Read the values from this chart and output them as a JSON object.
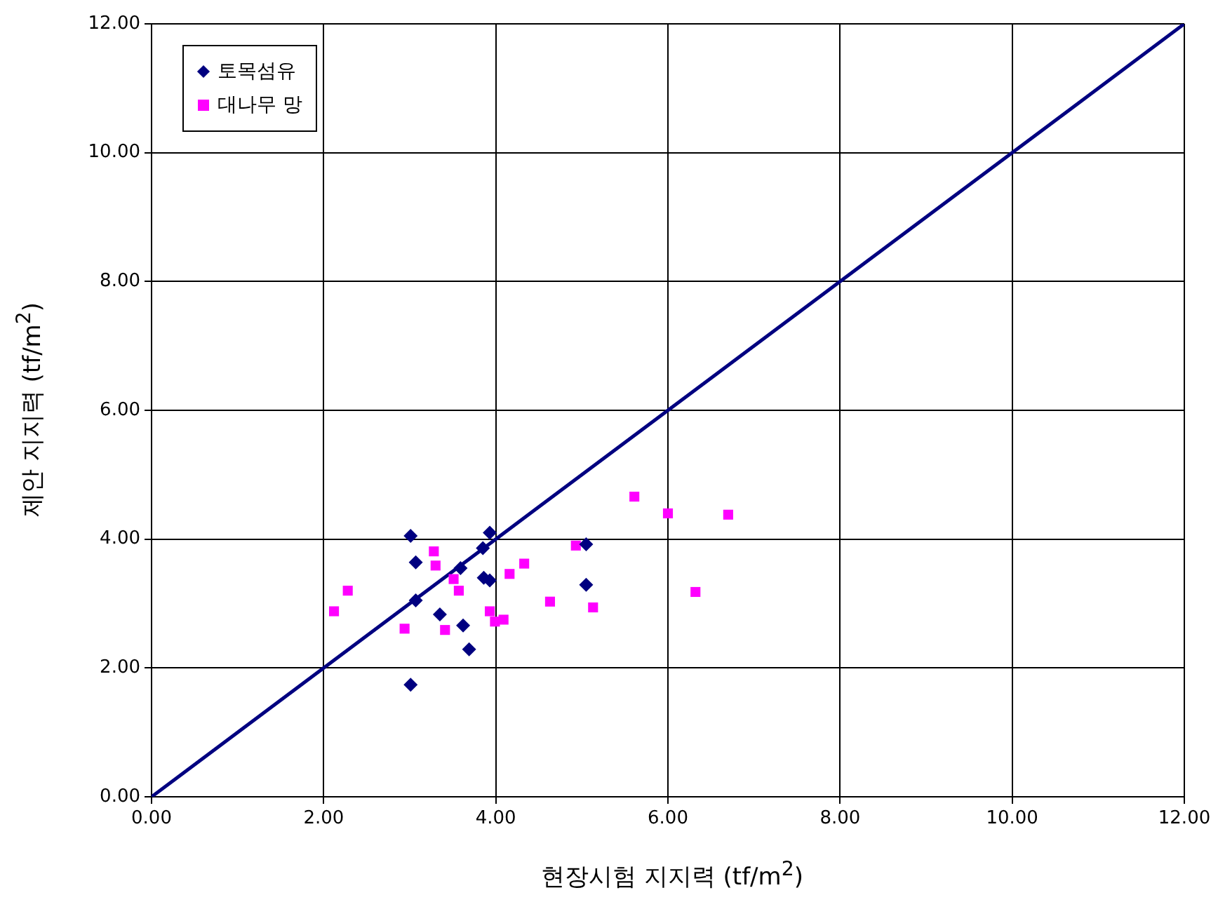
{
  "chart_data": {
    "type": "scatter",
    "xlabel": "현장시험 지지력 (tf/m$^{2}$)",
    "ylabel": "제안 지지력 (tf/m$^{2}$)",
    "xlim": [
      0,
      12
    ],
    "ylim": [
      0,
      12
    ],
    "xticks": [
      {
        "value": 0,
        "label": "0.00"
      },
      {
        "value": 2,
        "label": "2.00"
      },
      {
        "value": 4,
        "label": "4.00"
      },
      {
        "value": 6,
        "label": "6.00"
      },
      {
        "value": 8,
        "label": "8.00"
      },
      {
        "value": 10,
        "label": "10.00"
      },
      {
        "value": 12,
        "label": "12.00"
      }
    ],
    "yticks": [
      {
        "value": 0,
        "label": "0.00"
      },
      {
        "value": 2,
        "label": "2.00"
      },
      {
        "value": 4,
        "label": "4.00"
      },
      {
        "value": 6,
        "label": "6.00"
      },
      {
        "value": 8,
        "label": "8.00"
      },
      {
        "value": 10,
        "label": "10.00"
      },
      {
        "value": 12,
        "label": "12.00"
      }
    ],
    "grid": true,
    "legend": "top left",
    "series": [
      {
        "name": "토목섬유",
        "type": "scatter",
        "marker": "diamond",
        "color": "#000080",
        "x": [
          3.01,
          3.07,
          3.07,
          3.35,
          3.59,
          3.62,
          3.69,
          3.01,
          3.85,
          3.93,
          3.86,
          3.93,
          5.05,
          5.05
        ],
        "values": [
          4.05,
          3.64,
          3.05,
          2.83,
          3.55,
          2.66,
          2.29,
          1.74,
          3.86,
          4.1,
          3.4,
          3.36,
          3.92,
          3.29
        ]
      },
      {
        "name": "대나무 망",
        "type": "scatter",
        "marker": "square",
        "color": "#ff00ff",
        "x": [
          2.28,
          2.12,
          2.94,
          3.28,
          3.3,
          3.51,
          3.57,
          3.41,
          3.93,
          3.99,
          4.09,
          4.16,
          4.33,
          4.63,
          4.93,
          5.13,
          5.61,
          6.0,
          6.7,
          6.32
        ],
        "values": [
          3.2,
          2.88,
          2.61,
          3.81,
          3.59,
          3.38,
          3.2,
          2.59,
          2.88,
          2.72,
          2.75,
          3.46,
          3.62,
          3.03,
          3.9,
          2.94,
          4.66,
          4.4,
          4.38,
          3.18
        ]
      },
      {
        "type": "line",
        "marker": "none",
        "color": "#000080",
        "x": [
          0,
          12
        ],
        "values": [
          0,
          12
        ]
      }
    ]
  }
}
